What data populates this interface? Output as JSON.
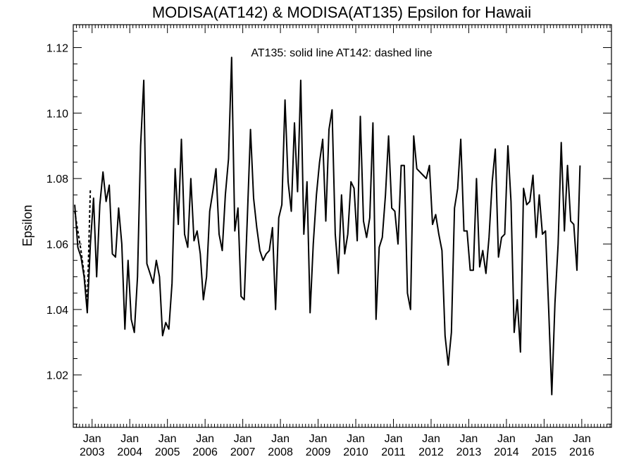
{
  "chart_data": {
    "type": "line",
    "title": "MODISA(AT142) & MODISA(AT135)  Epsilon for Hawaii",
    "annotation": "AT135: solid line   AT142: dashed line",
    "xlabel": "",
    "ylabel": "Epsilon",
    "xlim": [
      "2002-07-01",
      "2016-10-15"
    ],
    "ylim": [
      1.004,
      1.127
    ],
    "y_ticks": [
      1.02,
      1.04,
      1.06,
      1.08,
      1.1,
      1.12
    ],
    "y_tick_labels": [
      "1.02",
      "1.04",
      "1.06",
      "1.08",
      "1.10",
      "1.12"
    ],
    "x_ticks": [
      {
        "date": "2003-01-01",
        "label1": "Jan",
        "label2": "2003"
      },
      {
        "date": "2004-01-01",
        "label1": "Jan",
        "label2": "2004"
      },
      {
        "date": "2005-01-01",
        "label1": "Jan",
        "label2": "2005"
      },
      {
        "date": "2006-01-01",
        "label1": "Jan",
        "label2": "2006"
      },
      {
        "date": "2007-01-01",
        "label1": "Jan",
        "label2": "2007"
      },
      {
        "date": "2008-01-01",
        "label1": "Jan",
        "label2": "2008"
      },
      {
        "date": "2009-01-01",
        "label1": "Jan",
        "label2": "2009"
      },
      {
        "date": "2010-01-01",
        "label1": "Jan",
        "label2": "2010"
      },
      {
        "date": "2011-01-01",
        "label1": "Jan",
        "label2": "2011"
      },
      {
        "date": "2012-01-01",
        "label1": "Jan",
        "label2": "2012"
      },
      {
        "date": "2013-01-01",
        "label1": "Jan",
        "label2": "2013"
      },
      {
        "date": "2014-01-01",
        "label1": "Jan",
        "label2": "2014"
      },
      {
        "date": "2015-01-01",
        "label1": "Jan",
        "label2": "2015"
      },
      {
        "date": "2016-01-01",
        "label1": "Jan",
        "label2": "2016"
      }
    ],
    "series": [
      {
        "name": "AT135",
        "style": "solid",
        "color": "#000000",
        "points": [
          [
            "2002-07-15",
            1.072
          ],
          [
            "2002-08-15",
            1.059
          ],
          [
            "2002-09-15",
            1.056
          ],
          [
            "2002-10-15",
            1.05
          ],
          [
            "2002-11-15",
            1.039
          ],
          [
            "2002-12-15",
            1.06
          ],
          [
            "2003-01-15",
            1.074
          ],
          [
            "2003-02-15",
            1.05
          ],
          [
            "2003-03-15",
            1.072
          ],
          [
            "2003-04-15",
            1.082
          ],
          [
            "2003-05-15",
            1.073
          ],
          [
            "2003-06-15",
            1.078
          ],
          [
            "2003-07-15",
            1.057
          ],
          [
            "2003-08-15",
            1.056
          ],
          [
            "2003-09-15",
            1.071
          ],
          [
            "2003-10-15",
            1.06
          ],
          [
            "2003-11-15",
            1.034
          ],
          [
            "2003-12-15",
            1.055
          ],
          [
            "2004-01-15",
            1.037
          ],
          [
            "2004-02-15",
            1.033
          ],
          [
            "2004-03-15",
            1.05
          ],
          [
            "2004-04-15",
            1.09
          ],
          [
            "2004-05-15",
            1.11
          ],
          [
            "2004-06-15",
            1.054
          ],
          [
            "2004-07-15",
            1.051
          ],
          [
            "2004-08-15",
            1.048
          ],
          [
            "2004-09-15",
            1.055
          ],
          [
            "2004-10-15",
            1.05
          ],
          [
            "2004-11-15",
            1.032
          ],
          [
            "2004-12-15",
            1.036
          ],
          [
            "2005-01-15",
            1.034
          ],
          [
            "2005-02-15",
            1.048
          ],
          [
            "2005-03-15",
            1.083
          ],
          [
            "2005-04-15",
            1.066
          ],
          [
            "2005-05-15",
            1.092
          ],
          [
            "2005-06-15",
            1.063
          ],
          [
            "2005-07-15",
            1.059
          ],
          [
            "2005-08-15",
            1.08
          ],
          [
            "2005-09-15",
            1.061
          ],
          [
            "2005-10-15",
            1.064
          ],
          [
            "2005-11-15",
            1.057
          ],
          [
            "2005-12-15",
            1.043
          ],
          [
            "2006-01-15",
            1.05
          ],
          [
            "2006-02-15",
            1.07
          ],
          [
            "2006-03-15",
            1.076
          ],
          [
            "2006-04-15",
            1.083
          ],
          [
            "2006-05-15",
            1.063
          ],
          [
            "2006-06-15",
            1.058
          ],
          [
            "2006-07-15",
            1.075
          ],
          [
            "2006-08-15",
            1.086
          ],
          [
            "2006-09-15",
            1.117
          ],
          [
            "2006-10-15",
            1.064
          ],
          [
            "2006-11-15",
            1.071
          ],
          [
            "2006-12-15",
            1.044
          ],
          [
            "2007-01-15",
            1.043
          ],
          [
            "2007-02-15",
            1.068
          ],
          [
            "2007-03-15",
            1.095
          ],
          [
            "2007-04-15",
            1.074
          ],
          [
            "2007-05-15",
            1.065
          ],
          [
            "2007-06-15",
            1.058
          ],
          [
            "2007-07-15",
            1.055
          ],
          [
            "2007-08-15",
            1.057
          ],
          [
            "2007-09-15",
            1.058
          ],
          [
            "2007-10-15",
            1.065
          ],
          [
            "2007-11-15",
            1.04
          ],
          [
            "2007-12-15",
            1.068
          ],
          [
            "2008-01-15",
            1.072
          ],
          [
            "2008-02-15",
            1.104
          ],
          [
            "2008-03-15",
            1.079
          ],
          [
            "2008-04-15",
            1.07
          ],
          [
            "2008-05-15",
            1.097
          ],
          [
            "2008-06-15",
            1.076
          ],
          [
            "2008-07-15",
            1.11
          ],
          [
            "2008-08-15",
            1.063
          ],
          [
            "2008-09-15",
            1.079
          ],
          [
            "2008-10-15",
            1.039
          ],
          [
            "2008-11-15",
            1.06
          ],
          [
            "2008-12-15",
            1.075
          ],
          [
            "2009-01-15",
            1.085
          ],
          [
            "2009-02-15",
            1.092
          ],
          [
            "2009-03-15",
            1.067
          ],
          [
            "2009-04-15",
            1.095
          ],
          [
            "2009-05-15",
            1.101
          ],
          [
            "2009-06-15",
            1.063
          ],
          [
            "2009-07-15",
            1.051
          ],
          [
            "2009-08-15",
            1.075
          ],
          [
            "2009-09-15",
            1.057
          ],
          [
            "2009-10-15",
            1.063
          ],
          [
            "2009-11-15",
            1.079
          ],
          [
            "2009-12-15",
            1.077
          ],
          [
            "2010-01-15",
            1.061
          ],
          [
            "2010-02-15",
            1.099
          ],
          [
            "2010-03-15",
            1.067
          ],
          [
            "2010-04-15",
            1.062
          ],
          [
            "2010-05-15",
            1.068
          ],
          [
            "2010-06-15",
            1.097
          ],
          [
            "2010-07-15",
            1.037
          ],
          [
            "2010-08-15",
            1.059
          ],
          [
            "2010-09-15",
            1.062
          ],
          [
            "2010-10-15",
            1.075
          ],
          [
            "2010-11-15",
            1.093
          ],
          [
            "2010-12-15",
            1.071
          ],
          [
            "2011-01-15",
            1.07
          ],
          [
            "2011-02-15",
            1.06
          ],
          [
            "2011-03-15",
            1.084
          ],
          [
            "2011-04-15",
            1.084
          ],
          [
            "2011-05-15",
            1.045
          ],
          [
            "2011-06-15",
            1.04
          ],
          [
            "2011-07-15",
            1.093
          ],
          [
            "2011-08-15",
            1.083
          ],
          [
            "2011-09-15",
            1.082
          ],
          [
            "2011-10-15",
            1.081
          ],
          [
            "2011-11-15",
            1.08
          ],
          [
            "2011-12-15",
            1.084
          ],
          [
            "2012-01-15",
            1.066
          ],
          [
            "2012-02-15",
            1.069
          ],
          [
            "2012-03-15",
            1.063
          ],
          [
            "2012-04-15",
            1.058
          ],
          [
            "2012-05-15",
            1.032
          ],
          [
            "2012-06-15",
            1.023
          ],
          [
            "2012-07-15",
            1.033
          ],
          [
            "2012-08-15",
            1.071
          ],
          [
            "2012-09-15",
            1.077
          ],
          [
            "2012-10-15",
            1.092
          ],
          [
            "2012-11-15",
            1.064
          ],
          [
            "2012-12-15",
            1.064
          ],
          [
            "2013-01-15",
            1.052
          ],
          [
            "2013-02-15",
            1.052
          ],
          [
            "2013-03-15",
            1.08
          ],
          [
            "2013-04-15",
            1.053
          ],
          [
            "2013-05-15",
            1.058
          ],
          [
            "2013-06-15",
            1.051
          ],
          [
            "2013-07-15",
            1.062
          ],
          [
            "2013-08-15",
            1.079
          ],
          [
            "2013-09-15",
            1.089
          ],
          [
            "2013-10-15",
            1.056
          ],
          [
            "2013-11-15",
            1.062
          ],
          [
            "2013-12-15",
            1.063
          ],
          [
            "2014-01-15",
            1.09
          ],
          [
            "2014-02-15",
            1.073
          ],
          [
            "2014-03-15",
            1.033
          ],
          [
            "2014-04-15",
            1.043
          ],
          [
            "2014-05-15",
            1.027
          ],
          [
            "2014-06-15",
            1.077
          ],
          [
            "2014-07-15",
            1.072
          ],
          [
            "2014-08-15",
            1.073
          ],
          [
            "2014-09-15",
            1.081
          ],
          [
            "2014-10-15",
            1.062
          ],
          [
            "2014-11-15",
            1.075
          ],
          [
            "2014-12-15",
            1.063
          ],
          [
            "2015-01-15",
            1.064
          ],
          [
            "2015-02-15",
            1.04
          ],
          [
            "2015-03-15",
            1.014
          ],
          [
            "2015-04-15",
            1.042
          ],
          [
            "2015-05-15",
            1.06
          ],
          [
            "2015-06-15",
            1.091
          ],
          [
            "2015-07-15",
            1.064
          ],
          [
            "2015-08-15",
            1.084
          ],
          [
            "2015-09-15",
            1.067
          ],
          [
            "2015-10-15",
            1.066
          ],
          [
            "2015-11-15",
            1.052
          ],
          [
            "2015-12-15",
            1.084
          ]
        ]
      },
      {
        "name": "AT142",
        "style": "dashed",
        "color": "#000000",
        "points": [
          [
            "2002-07-15",
            1.07
          ],
          [
            "2002-08-15",
            1.064
          ],
          [
            "2002-09-15",
            1.058
          ],
          [
            "2002-10-15",
            1.051
          ],
          [
            "2002-11-15",
            1.042
          ],
          [
            "2002-12-15",
            1.077
          ]
        ]
      }
    ]
  }
}
